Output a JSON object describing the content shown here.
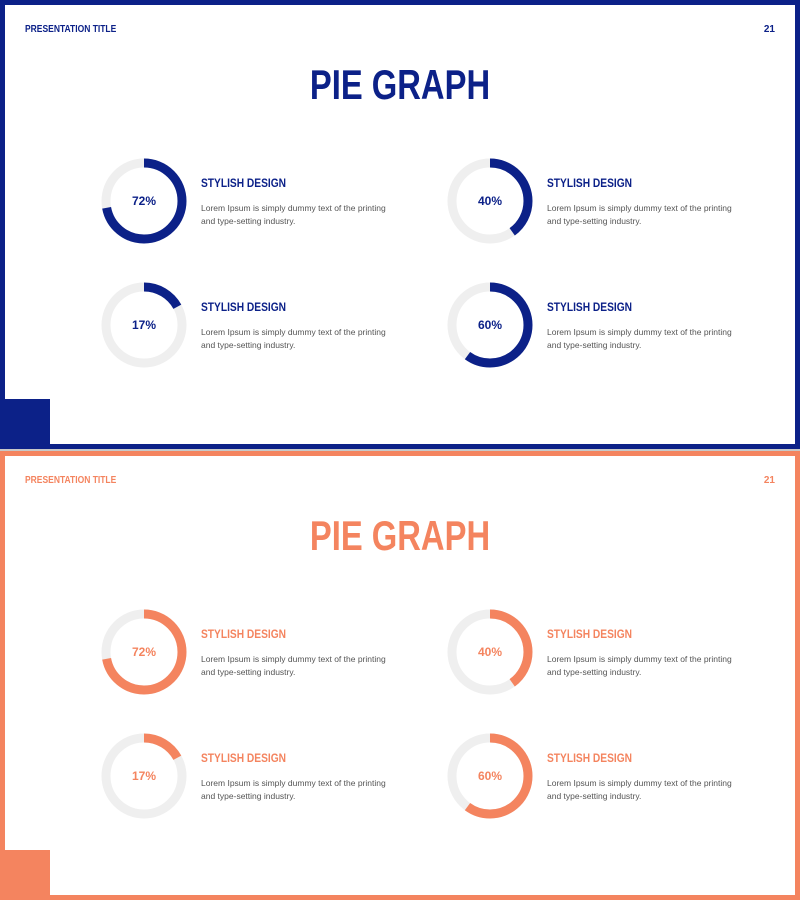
{
  "slides": [
    {
      "color": "#0c2188",
      "presentation_title": "PRESENTATION TITLE",
      "page_number": "21",
      "heading": "PIE GRAPH",
      "items": [
        {
          "percent": 72,
          "label": "72%",
          "title": "STYLISH DESIGN",
          "text": "Lorem Ipsum is simply dummy text of the printing and type-setting industry."
        },
        {
          "percent": 40,
          "label": "40%",
          "title": "STYLISH DESIGN",
          "text": "Lorem Ipsum is simply dummy text of the printing and type-setting industry."
        },
        {
          "percent": 17,
          "label": "17%",
          "title": "STYLISH DESIGN",
          "text": "Lorem Ipsum is simply dummy text of the printing and type-setting industry."
        },
        {
          "percent": 60,
          "label": "60%",
          "title": "STYLISH DESIGN",
          "text": "Lorem Ipsum is simply dummy text of the printing and type-setting industry."
        }
      ]
    },
    {
      "color": "#f4845f",
      "presentation_title": "PRESENTATION TITLE",
      "page_number": "21",
      "heading": "PIE GRAPH",
      "items": [
        {
          "percent": 72,
          "label": "72%",
          "title": "STYLISH DESIGN",
          "text": "Lorem Ipsum is simply dummy text of the printing and type-setting industry."
        },
        {
          "percent": 40,
          "label": "40%",
          "title": "STYLISH DESIGN",
          "text": "Lorem Ipsum is simply dummy text of the printing and type-setting industry."
        },
        {
          "percent": 17,
          "label": "17%",
          "title": "STYLISH DESIGN",
          "text": "Lorem Ipsum is simply dummy text of the printing and type-setting industry."
        },
        {
          "percent": 60,
          "label": "60%",
          "title": "STYLISH DESIGN",
          "text": "Lorem Ipsum is simply dummy text of the printing and type-setting industry."
        }
      ]
    }
  ],
  "track_color": "#efefef"
}
